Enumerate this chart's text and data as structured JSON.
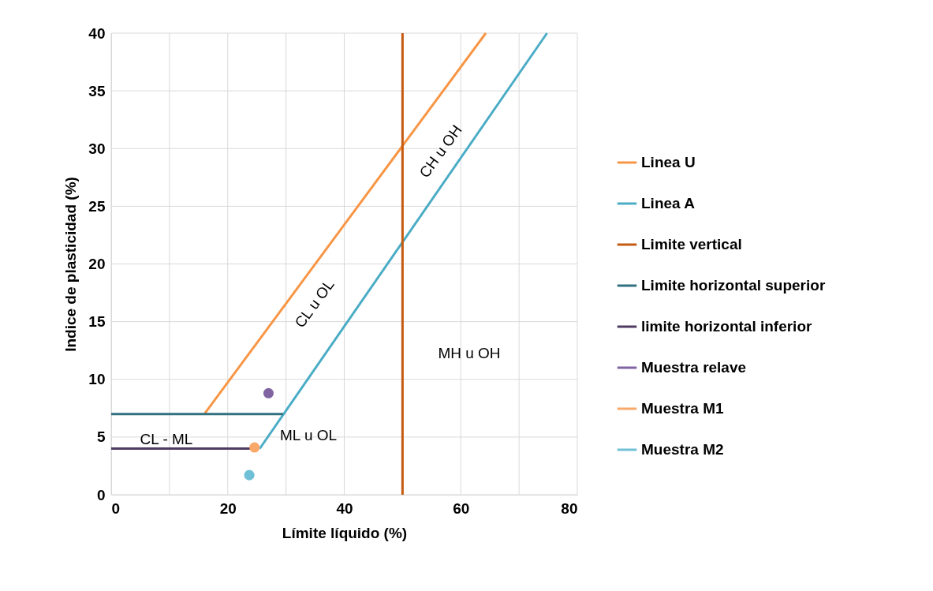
{
  "chart_data": {
    "type": "line",
    "xlabel": "Límite líquido (%)",
    "ylabel": "Indice de plasticidad (%)",
    "xlim": [
      0,
      80
    ],
    "xticks": [
      0,
      {
        "value": 10,
        "label": null
      },
      20,
      {
        "value": 30,
        "label": null
      },
      40,
      {
        "value": 50,
        "label": null
      },
      60,
      {
        "value": 70,
        "label": null
      },
      80
    ],
    "ylim": [
      0,
      40
    ],
    "yticks": [
      0,
      5,
      10,
      15,
      20,
      25,
      30,
      35,
      40
    ],
    "grid": true,
    "legend": "right",
    "series": [
      {
        "name": "Linea U",
        "color": "#f79646",
        "x": [
          16,
          64.3
        ],
        "values": [
          7,
          40
        ]
      },
      {
        "name": "Linea A",
        "color": "#4bacc6",
        "x": [
          25.5,
          74.8
        ],
        "values": [
          4,
          40
        ]
      },
      {
        "name": "Limite vertical",
        "color": "#c55a11",
        "x": [
          50,
          50
        ],
        "values": [
          0,
          40
        ]
      },
      {
        "name": "Limite horizontal superior",
        "color": "#31707e",
        "x": [
          0,
          29.5
        ],
        "values": [
          7,
          7
        ]
      },
      {
        "name": "limite horizontal inferior",
        "color": "#4f3b62",
        "x": [
          0,
          25.4
        ],
        "values": [
          4,
          4
        ]
      },
      {
        "name": "Muestra relave",
        "color": "#8064a2",
        "type": "scatter",
        "x": [
          27
        ],
        "values": [
          8.8
        ]
      },
      {
        "name": "Muestra M1",
        "color": "#f9a86a",
        "type": "scatter",
        "x": [
          24.6
        ],
        "values": [
          4.1
        ]
      },
      {
        "name": "Muestra M2",
        "color": "#6fc0d6",
        "type": "scatter",
        "x": [
          23.7
        ],
        "values": [
          1.7
        ]
      }
    ],
    "annotations": [
      "CL - ML",
      "ML u OL",
      "CL u OL",
      "CH u OH",
      "MH u OH"
    ]
  }
}
